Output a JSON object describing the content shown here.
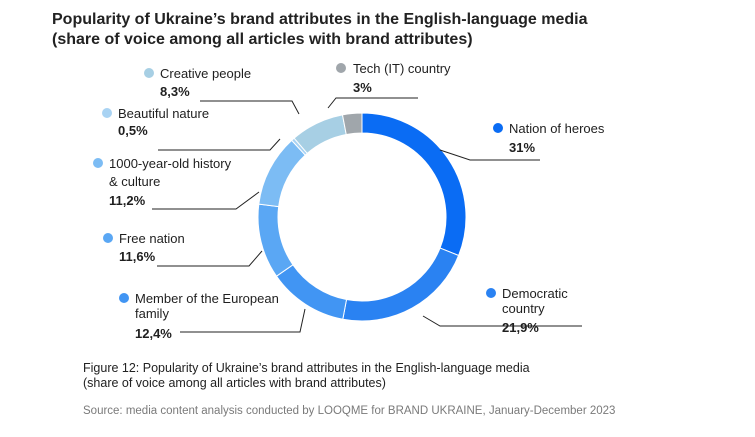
{
  "chart_data": {
    "type": "pie",
    "subtype": "donut",
    "title": [
      "Popularity of Ukraine’s brand attributes in the English-language media",
      "(share of voice among all articles with brand attributes)"
    ],
    "series": [
      {
        "name": "Nation of heroes",
        "label_lines": [
          "Nation of heroes"
        ],
        "value": 31,
        "value_label": "31%",
        "color": "#0a6cf4"
      },
      {
        "name": "Democratic country",
        "label_lines": [
          "Democratic",
          "country"
        ],
        "value": 21.9,
        "value_label": "21,9%",
        "color": "#2a82f2"
      },
      {
        "name": "Member of the European family",
        "label_lines": [
          "Member of the European",
          "family"
        ],
        "value": 12.4,
        "value_label": "12,4%",
        "color": "#4195f3"
      },
      {
        "name": "Free nation",
        "label_lines": [
          "Free nation"
        ],
        "value": 11.6,
        "value_label": "11,6%",
        "color": "#5aa7f4"
      },
      {
        "name": "1000-year-old history & culture",
        "label_lines": [
          "1000-year-old history",
          "& culture"
        ],
        "value": 11.2,
        "value_label": "11,2%",
        "color": "#7cbcf4"
      },
      {
        "name": "Beautiful nature",
        "label_lines": [
          "Beautiful nature"
        ],
        "value": 0.5,
        "value_label": "0,5%",
        "color": "#a9d3f3"
      },
      {
        "name": "Creative people",
        "label_lines": [
          "Creative people"
        ],
        "value": 8.3,
        "value_label": "8,3%",
        "color": "#a7cfe4"
      },
      {
        "name": "Tech (IT) country",
        "label_lines": [
          "Tech (IT) country"
        ],
        "value": 3,
        "value_label": "3%",
        "color": "#a0a6ab"
      }
    ],
    "legend": "labels-around-donut"
  },
  "caption": [
    "Figure 12: Popularity of Ukraine’s brand attributes in the English-language media",
    "(share of voice among all articles with brand attributes)"
  ],
  "source": "Source: media content analysis conducted by LOOQME for BRAND UKRAINE, January-December 2023"
}
